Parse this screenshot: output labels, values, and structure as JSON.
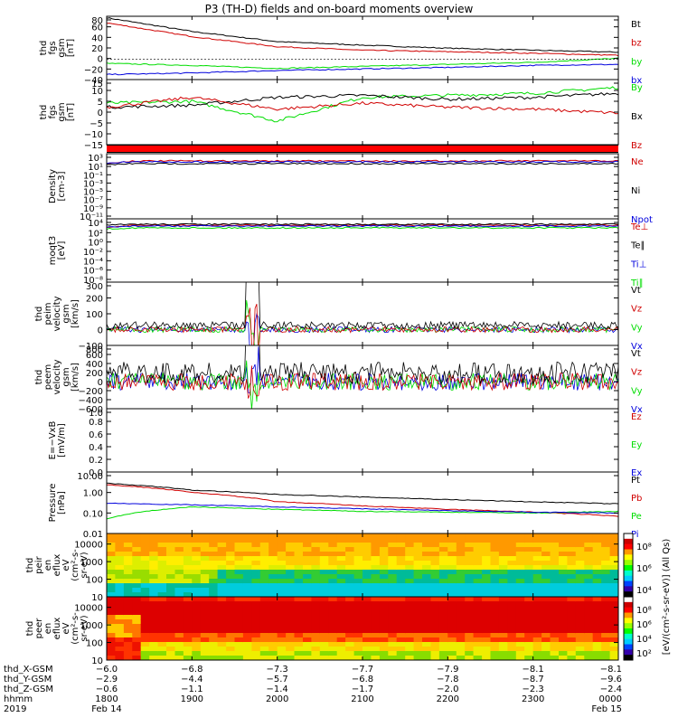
{
  "title": "P3 (TH-D) fields and on-board moments overview",
  "colors": {
    "black": "#000000",
    "red": "#d00000",
    "green": "#00dd00",
    "blue": "#0000dd"
  },
  "panels": [
    {
      "id": "fgs",
      "ylabel": [
        "thd",
        "fgs",
        "gsm",
        "[nT]"
      ],
      "ticks": [
        "80",
        "60",
        "40",
        "20",
        "0",
        "−20",
        "−40"
      ],
      "legend": [
        {
          "label": "Bt",
          "color": "#000000"
        },
        {
          "label": "bz",
          "color": "#d00000"
        },
        {
          "label": "by",
          "color": "#00dd00"
        },
        {
          "label": "bx",
          "color": "#0000dd"
        }
      ]
    },
    {
      "id": "fgs_dsl",
      "ylabel": [
        "thd",
        "fgs",
        "gsm",
        "[nT]"
      ],
      "ticks": [
        "15",
        "10",
        "5",
        "0",
        "−5",
        "−10",
        "−15"
      ],
      "legend": [
        {
          "label": "By",
          "color": "#00dd00"
        },
        {
          "label": "Bx",
          "color": "#000000"
        },
        {
          "label": "Bz",
          "color": "#d00000"
        }
      ]
    },
    {
      "id": "density",
      "ylabel": [
        "Density",
        "[cm-3]"
      ],
      "ticks": [
        "10³",
        "10¹",
        "10⁻¹",
        "10⁻³",
        "10⁻⁵",
        "10⁻⁷",
        "10⁻⁹",
        "10⁻¹¹"
      ],
      "legend": [
        {
          "label": "Ne",
          "color": "#d00000"
        },
        {
          "label": "Ni",
          "color": "#000000"
        },
        {
          "label": "Npot",
          "color": "#0000dd"
        }
      ]
    },
    {
      "id": "temp",
      "ylabel": [
        "moqt3",
        "[eV]"
      ],
      "ticks": [
        "10⁴",
        "10²",
        "10⁰",
        "10⁻²",
        "10⁻⁴",
        "10⁻⁶",
        "10⁻⁸"
      ],
      "legend": [
        {
          "label": "Te⊥",
          "color": "#d00000"
        },
        {
          "label": "Te∥",
          "color": "#000000"
        },
        {
          "label": "Ti⊥",
          "color": "#0000dd"
        },
        {
          "label": "Ti∥",
          "color": "#00dd00"
        }
      ]
    },
    {
      "id": "vi",
      "ylabel": [
        "thd",
        "peim",
        "velocity",
        "gsm",
        "[km/s]"
      ],
      "ticks": [
        "300",
        "200",
        "100",
        "0",
        "−100"
      ],
      "legend": [
        {
          "label": "Vt",
          "color": "#000000"
        },
        {
          "label": "Vz",
          "color": "#d00000"
        },
        {
          "label": "Vy",
          "color": "#00dd00"
        },
        {
          "label": "Vx",
          "color": "#0000dd"
        }
      ]
    },
    {
      "id": "ve",
      "ylabel": [
        "thd",
        "peem",
        "velocity",
        "gsm",
        "[km/s]"
      ],
      "ticks": [
        "800",
        "600",
        "400",
        "200",
        "0",
        "−200",
        "−400",
        "−600"
      ],
      "legend": [
        {
          "label": "Vt",
          "color": "#000000"
        },
        {
          "label": "Vz",
          "color": "#d00000"
        },
        {
          "label": "Vy",
          "color": "#00dd00"
        },
        {
          "label": "Vx",
          "color": "#0000dd"
        }
      ]
    },
    {
      "id": "efield",
      "ylabel": [
        "E=−VxB",
        "[mV/m]"
      ],
      "ticks": [
        "1.0",
        "0.8",
        "0.6",
        "0.4",
        "0.2",
        "0.0"
      ],
      "legend": [
        {
          "label": "Ez",
          "color": "#d00000"
        },
        {
          "label": "Ey",
          "color": "#00dd00"
        },
        {
          "label": "Ex",
          "color": "#0000dd"
        }
      ]
    },
    {
      "id": "pressure",
      "ylabel": [
        "Pressure",
        "[nPa]"
      ],
      "ticks": [
        "10.00",
        "1.00",
        "0.10",
        "0.01"
      ],
      "legend": [
        {
          "label": "Pt",
          "color": "#000000"
        },
        {
          "label": "Pb",
          "color": "#d00000"
        },
        {
          "label": "Pe",
          "color": "#00dd00"
        },
        {
          "label": "Pi",
          "color": "#0000dd"
        }
      ]
    },
    {
      "id": "ion_spec",
      "ylabel": [
        "thd",
        "peir",
        "en",
        "eflux",
        "eV",
        "(cm²-s-",
        "sr-eV)"
      ],
      "ticks": [
        "10000",
        "1000",
        "100",
        "10"
      ],
      "cbar": [
        "10⁸",
        "10⁶",
        "10⁴"
      ]
    },
    {
      "id": "ele_spec",
      "ylabel": [
        "thd",
        "peer",
        "en",
        "eflux",
        "eV",
        "(cm²-s-",
        "sr-eV)"
      ],
      "ticks": [
        "10000",
        "1000",
        "100",
        "10"
      ],
      "cbar": [
        "10⁸",
        "10⁶",
        "10⁴",
        "10²"
      ]
    }
  ],
  "colorbar_label": "[eV/(cm²-s-sr-eV)] (All Qs)",
  "xaxis": {
    "row_labels": [
      "thd_X-GSM",
      "thd_Y-GSM",
      "thd_Z-GSM",
      "hhmm",
      "2019"
    ],
    "columns": [
      {
        "x": "−6.0",
        "y": "−2.9",
        "z": "−0.6",
        "hhmm": "1800",
        "date": "Feb 14"
      },
      {
        "x": "−6.8",
        "y": "−4.4",
        "z": "−1.1",
        "hhmm": "1900",
        "date": ""
      },
      {
        "x": "−7.3",
        "y": "−5.7",
        "z": "−1.4",
        "hhmm": "2000",
        "date": ""
      },
      {
        "x": "−7.7",
        "y": "−6.8",
        "z": "−1.7",
        "hhmm": "2100",
        "date": ""
      },
      {
        "x": "−7.9",
        "y": "−7.8",
        "z": "−2.0",
        "hhmm": "2200",
        "date": ""
      },
      {
        "x": "−8.1",
        "y": "−8.7",
        "z": "−2.3",
        "hhmm": "2300",
        "date": ""
      },
      {
        "x": "−8.1",
        "y": "−9.6",
        "z": "−2.4",
        "hhmm": "0000",
        "date": "Feb 15"
      }
    ]
  },
  "chart_data": {
    "type": "line",
    "title": "P3 (TH-D) fields and on-board moments overview",
    "x": [
      "1800",
      "1900",
      "2000",
      "2100",
      "2200",
      "2300",
      "0000"
    ],
    "panels": [
      {
        "name": "fgs",
        "ylim": [
          -40,
          85
        ],
        "series": [
          {
            "name": "Bt",
            "values": [
              82,
              55,
              35,
              28,
              22,
              18,
              14
            ]
          },
          {
            "name": "bz",
            "values": [
              72,
              45,
              25,
              18,
              15,
              12,
              8
            ]
          },
          {
            "name": "by",
            "values": [
              -8,
              -12,
              -18,
              -14,
              -10,
              -6,
              2
            ]
          },
          {
            "name": "bx",
            "values": [
              -30,
              -27,
              -22,
              -19,
              -16,
              -12,
              -10
            ]
          }
        ]
      },
      {
        "name": "fgs_dsl",
        "ylim": [
          -18,
          15
        ],
        "series": [
          {
            "name": "By",
            "values": [
              3,
              4,
              -6,
              6,
              7,
              8,
              11
            ]
          },
          {
            "name": "Bx",
            "values": [
              1,
              2,
              6,
              7,
              5,
              6,
              8
            ]
          },
          {
            "name": "Bz",
            "values": [
              1,
              6,
              0,
              3,
              1,
              0,
              -2
            ]
          }
        ]
      },
      {
        "name": "pressure",
        "ylim": [
          0.01,
          10
        ],
        "series": [
          {
            "name": "Pt",
            "values": [
              2.8,
              1.3,
              0.8,
              0.6,
              0.45,
              0.35,
              0.28
            ]
          },
          {
            "name": "Pb",
            "values": [
              2.4,
              1.0,
              0.35,
              0.22,
              0.15,
              0.11,
              0.07
            ]
          },
          {
            "name": "Pe",
            "values": [
              0.05,
              0.2,
              0.15,
              0.12,
              0.11,
              0.1,
              0.12
            ]
          },
          {
            "name": "Pi",
            "values": [
              0.3,
              0.25,
              0.2,
              0.16,
              0.13,
              0.11,
              0.1
            ]
          }
        ]
      }
    ]
  }
}
